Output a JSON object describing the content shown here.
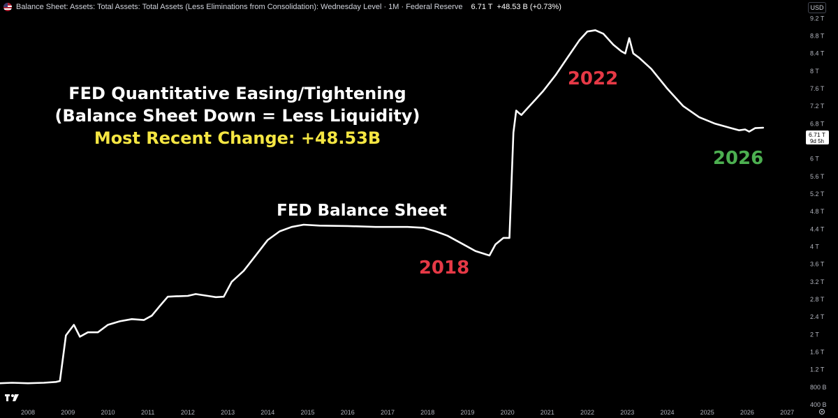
{
  "header": {
    "title": "Balance Sheet: Assets: Total Assets: Total Assets (Less Eliminations from Consolidation): Wednesday Level · 1M · Federal Reserve",
    "last_value": "6.71 T",
    "change": "+48.53 B (+0.73%)"
  },
  "currency": "USD",
  "price_label": {
    "value": "6.71 T",
    "countdown": "9d 5h"
  },
  "annotations": {
    "line1": "FED Quantitative Easing/Tightening",
    "line2": "(Balance Sheet Down = Less Liquidity)",
    "line3": "Most Recent Change: +48.53B",
    "series_label": "FED Balance Sheet",
    "y2018": "2018",
    "y2022": "2022",
    "y2026": "2026"
  },
  "colors": {
    "line": "#ffffff",
    "red": "#e63946",
    "green": "#4caf50",
    "yellow": "#f5e642",
    "axis_text": "#b2b5be"
  },
  "chart_data": {
    "type": "line",
    "title": "Balance Sheet: Assets: Total Assets: Total Assets (Less Eliminations from Consolidation): Wednesday Level",
    "xlabel": "",
    "ylabel": "",
    "x_ticks": [
      "2008",
      "2009",
      "2010",
      "2011",
      "2012",
      "2013",
      "2014",
      "2015",
      "2016",
      "2017",
      "2018",
      "2019",
      "2020",
      "2021",
      "2022",
      "2023",
      "2024",
      "2025",
      "2026",
      "2027"
    ],
    "y_ticks": [
      "400 B",
      "800 B",
      "1.2 T",
      "1.6 T",
      "2 T",
      "2.4 T",
      "2.8 T",
      "3.2 T",
      "3.6 T",
      "4 T",
      "4.4 T",
      "4.8 T",
      "5.2 T",
      "5.6 T",
      "6 T",
      "6.4 T",
      "6.8 T",
      "7.2 T",
      "7.6 T",
      "8 T",
      "8.4 T",
      "8.8 T",
      "9.2 T"
    ],
    "xlim": [
      2007.3,
      2027.4
    ],
    "ylim_trillions": [
      0.4,
      9.3
    ],
    "series": [
      {
        "unit": "trillions USD",
        "x": [
          2007.3,
          2007.6,
          2008.0,
          2008.4,
          2008.7,
          2008.8,
          2008.95,
          2009.05,
          2009.15,
          2009.3,
          2009.5,
          2009.75,
          2010.0,
          2010.3,
          2010.6,
          2010.9,
          2011.1,
          2011.3,
          2011.5,
          2011.7,
          2012.0,
          2012.2,
          2012.5,
          2012.7,
          2012.9,
          2013.1,
          2013.4,
          2013.7,
          2014.0,
          2014.3,
          2014.6,
          2014.9,
          2015.3,
          2016.0,
          2016.7,
          2017.5,
          2017.9,
          2018.2,
          2018.5,
          2018.9,
          2019.2,
          2019.55,
          2019.7,
          2019.9,
          2020.05,
          2020.15,
          2020.22,
          2020.28,
          2020.35,
          2020.5,
          2020.7,
          2020.9,
          2021.2,
          2021.5,
          2021.8,
          2022.0,
          2022.2,
          2022.4,
          2022.65,
          2022.85,
          2022.95,
          2023.05,
          2023.15,
          2023.3,
          2023.6,
          2024.0,
          2024.4,
          2024.8,
          2025.2,
          2025.6,
          2025.8,
          2025.95,
          2026.05,
          2026.2,
          2026.4
        ],
        "y": [
          0.89,
          0.9,
          0.89,
          0.9,
          0.92,
          0.94,
          1.98,
          2.1,
          2.22,
          1.95,
          2.05,
          2.05,
          2.22,
          2.3,
          2.35,
          2.33,
          2.43,
          2.65,
          2.86,
          2.87,
          2.88,
          2.92,
          2.88,
          2.85,
          2.86,
          3.2,
          3.45,
          3.8,
          4.15,
          4.35,
          4.45,
          4.5,
          4.48,
          4.47,
          4.45,
          4.45,
          4.43,
          4.35,
          4.25,
          4.05,
          3.9,
          3.8,
          4.05,
          4.2,
          4.2,
          6.6,
          7.1,
          7.05,
          7.0,
          7.15,
          7.35,
          7.55,
          7.9,
          8.3,
          8.7,
          8.9,
          8.93,
          8.85,
          8.6,
          8.45,
          8.4,
          8.75,
          8.4,
          8.3,
          8.05,
          7.6,
          7.2,
          6.95,
          6.8,
          6.7,
          6.65,
          6.67,
          6.62,
          6.7,
          6.71
        ]
      }
    ],
    "last_value_label": "6.71 T"
  }
}
